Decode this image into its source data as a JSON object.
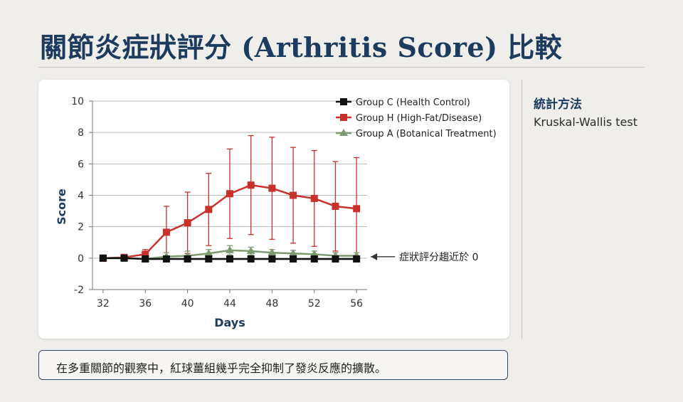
{
  "title": "關節炎症狀評分 (Arthritis Score) 比較",
  "stats": {
    "heading": "統計方法",
    "value": "Kruskal-Wallis test"
  },
  "note": "在多重關節的觀察中，紅球薑組幾乎完全抑制了發炎反應的擴散。",
  "chart_data": {
    "type": "line",
    "xlabel": "Days",
    "ylabel": "Score",
    "x": [
      32,
      34,
      36,
      38,
      40,
      42,
      44,
      46,
      48,
      50,
      52,
      54,
      56
    ],
    "xticks": [
      32,
      36,
      40,
      44,
      48,
      52,
      56
    ],
    "yticks": [
      10,
      8,
      6,
      4,
      2,
      0,
      -2
    ],
    "xlim": [
      31,
      57
    ],
    "ylim": [
      -2,
      10
    ],
    "grid": "horizontal",
    "legend_position": "top-right",
    "series": [
      {
        "name": "Group C (Health Control)",
        "color": "#111111",
        "marker": "square",
        "values": [
          0,
          0,
          -0.05,
          -0.05,
          -0.05,
          -0.05,
          -0.05,
          -0.05,
          -0.05,
          -0.05,
          -0.05,
          -0.05,
          -0.05
        ],
        "err": [
          0,
          0,
          0,
          0,
          0,
          0,
          0,
          0,
          0,
          0,
          0,
          0,
          0
        ]
      },
      {
        "name": "Group H (High-Fat/Disease)",
        "color": "#c8302c",
        "marker": "square",
        "values": [
          0,
          0.05,
          0.25,
          1.65,
          2.25,
          3.1,
          4.1,
          4.65,
          4.45,
          4.0,
          3.8,
          3.3,
          3.15
        ],
        "err": [
          0,
          0.05,
          0.3,
          1.65,
          1.95,
          2.3,
          2.85,
          3.15,
          3.25,
          3.05,
          3.05,
          2.85,
          3.25
        ]
      },
      {
        "name": "Group A (Botanical Treatment)",
        "color": "#7d9a6f",
        "marker": "triangle",
        "values": [
          0,
          0,
          -0.05,
          0.1,
          0.15,
          0.3,
          0.5,
          0.45,
          0.35,
          0.3,
          0.25,
          0.15,
          0.15
        ],
        "err": [
          0,
          0,
          0.15,
          0.25,
          0.3,
          0.25,
          0.3,
          0.25,
          0.2,
          0.2,
          0.2,
          0.2,
          0.2
        ]
      }
    ],
    "annotation": {
      "text": "症狀評分趨近於 0",
      "x": 56,
      "y": 0
    }
  }
}
